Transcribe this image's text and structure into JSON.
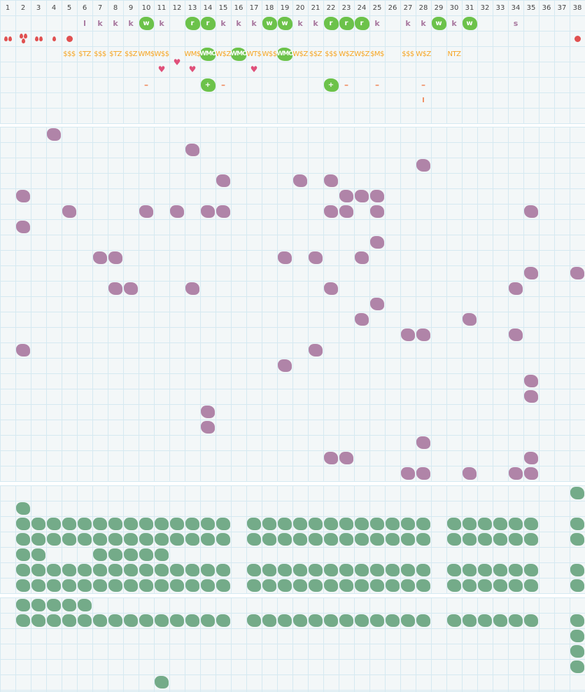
{
  "colors": {
    "grid_bg": "#f3f7f8",
    "grid_line": "#d5e9f1",
    "purple": "#b084a8",
    "sage": "#74ab89",
    "bright_green": "#6cc24a",
    "orange": "#f6a623",
    "red": "#e05050",
    "heart": "#e0507a"
  },
  "header": {
    "columns": [
      "1",
      "2",
      "3",
      "4",
      "5",
      "6",
      "7",
      "8",
      "9",
      "10",
      "11",
      "12",
      "13",
      "14",
      "15",
      "16",
      "17",
      "18",
      "19",
      "20",
      "21",
      "22",
      "23",
      "24",
      "25",
      "26",
      "27",
      "28",
      "29",
      "30",
      "31",
      "32",
      "33",
      "34",
      "35",
      "36",
      "37",
      "38"
    ]
  },
  "top": {
    "letters": [
      {
        "col": 6,
        "text": "l"
      },
      {
        "col": 7,
        "text": "k"
      },
      {
        "col": 8,
        "text": "k"
      },
      {
        "col": 9,
        "text": "k"
      },
      {
        "col": 10,
        "text": "w",
        "badge": true
      },
      {
        "col": 11,
        "text": "k"
      },
      {
        "col": 13,
        "text": "r",
        "badge": true
      },
      {
        "col": 14,
        "text": "r",
        "badge": true
      },
      {
        "col": 15,
        "text": "k"
      },
      {
        "col": 16,
        "text": "k"
      },
      {
        "col": 17,
        "text": "k"
      },
      {
        "col": 18,
        "text": "w",
        "badge": true
      },
      {
        "col": 19,
        "text": "w",
        "badge": true
      },
      {
        "col": 20,
        "text": "k"
      },
      {
        "col": 21,
        "text": "k"
      },
      {
        "col": 22,
        "text": "r",
        "badge": true
      },
      {
        "col": 23,
        "text": "r",
        "badge": true
      },
      {
        "col": 24,
        "text": "r",
        "badge": true
      },
      {
        "col": 25,
        "text": "k"
      },
      {
        "col": 27,
        "text": "k"
      },
      {
        "col": 28,
        "text": "k"
      },
      {
        "col": 29,
        "text": "w",
        "badge": true
      },
      {
        "col": 30,
        "text": "k"
      },
      {
        "col": 31,
        "text": "w",
        "badge": true
      },
      {
        "col": 34,
        "text": "s"
      }
    ],
    "markers": [
      {
        "col": 1,
        "icon": "drop-icon",
        "count": 2
      },
      {
        "col": 2,
        "icon": "drop-icon",
        "count": 3
      },
      {
        "col": 3,
        "icon": "drop-icon",
        "count": 2
      },
      {
        "col": 4,
        "icon": "drop-icon",
        "count": 1
      },
      {
        "col": 5,
        "icon": "circle-icon",
        "count": 1
      },
      {
        "col": 38,
        "icon": "circle-icon",
        "count": 1
      }
    ],
    "strings": [
      {
        "col": 5,
        "text": "$$$"
      },
      {
        "col": 6,
        "text": "$TZ"
      },
      {
        "col": 7,
        "text": "$$$"
      },
      {
        "col": 8,
        "text": "$TZ"
      },
      {
        "col": 9,
        "text": "$$Z"
      },
      {
        "col": 10,
        "text": "WM$"
      },
      {
        "col": 11,
        "text": "W$$"
      },
      {
        "col": 13,
        "text": "WM$"
      },
      {
        "col": 14,
        "text": "WMO",
        "badge": true
      },
      {
        "col": 15,
        "text": "W$Z"
      },
      {
        "col": 16,
        "text": "WMO",
        "badge": true
      },
      {
        "col": 17,
        "text": "WT$"
      },
      {
        "col": 18,
        "text": "W$$"
      },
      {
        "col": 19,
        "text": "WMO",
        "badge": true
      },
      {
        "col": 20,
        "text": "W$Z"
      },
      {
        "col": 21,
        "text": "$$Z"
      },
      {
        "col": 22,
        "text": "$$$"
      },
      {
        "col": 23,
        "text": "W$Z"
      },
      {
        "col": 24,
        "text": "W$Z"
      },
      {
        "col": 25,
        "text": "$M$"
      },
      {
        "col": 27,
        "text": "$$$"
      },
      {
        "col": 28,
        "text": "W$Z"
      },
      {
        "col": 30,
        "text": "NTZ"
      }
    ],
    "hearts": [
      {
        "col": 11
      },
      {
        "col": 12,
        "raised": true
      },
      {
        "col": 13
      },
      {
        "col": 17
      }
    ],
    "signs": [
      {
        "col": 10,
        "text": "–"
      },
      {
        "col": 14,
        "text": "+",
        "badge": true
      },
      {
        "col": 15,
        "text": "–"
      },
      {
        "col": 22,
        "text": "+",
        "badge": true
      },
      {
        "col": 23,
        "text": "–"
      },
      {
        "col": 25,
        "text": "–"
      },
      {
        "col": 28,
        "text": "–"
      }
    ],
    "bottom_marks": [
      {
        "col": 28,
        "text": "I"
      }
    ]
  },
  "purple_grid": {
    "rows": [
      [
        4
      ],
      [
        13
      ],
      [
        28
      ],
      [
        15,
        20,
        22
      ],
      [
        2,
        23,
        24,
        25
      ],
      [
        5,
        10,
        12,
        14,
        15,
        22,
        23,
        25,
        35
      ],
      [
        2
      ],
      [
        25
      ],
      [
        7,
        8,
        19,
        21,
        24
      ],
      [
        35,
        38
      ],
      [
        8,
        9,
        13,
        22,
        34
      ],
      [
        25
      ],
      [
        24,
        31
      ],
      [
        27,
        28,
        34
      ],
      [
        2,
        21
      ],
      [
        19
      ],
      [
        35
      ],
      [
        35
      ],
      [
        14
      ],
      [
        14
      ],
      [
        28
      ],
      [
        22,
        23,
        35
      ],
      [
        27,
        28,
        31,
        34,
        35
      ]
    ]
  },
  "green_grid_a": {
    "rows": [
      [
        38
      ],
      [
        2
      ],
      [
        2,
        3,
        4,
        5,
        6,
        7,
        8,
        9,
        10,
        11,
        12,
        13,
        14,
        15,
        17,
        18,
        19,
        20,
        21,
        22,
        23,
        24,
        25,
        26,
        27,
        28,
        30,
        31,
        32,
        33,
        34,
        35,
        38
      ],
      [
        2,
        3,
        4,
        5,
        6,
        7,
        8,
        9,
        10,
        11,
        12,
        13,
        14,
        15,
        17,
        18,
        19,
        20,
        21,
        22,
        23,
        24,
        25,
        26,
        27,
        28,
        30,
        31,
        32,
        33,
        34,
        35,
        38
      ],
      [
        2,
        3,
        7,
        8,
        9,
        10,
        11
      ],
      [
        2,
        3,
        4,
        5,
        6,
        7,
        8,
        9,
        10,
        11,
        12,
        13,
        14,
        15,
        17,
        18,
        19,
        20,
        21,
        22,
        23,
        24,
        25,
        26,
        27,
        28,
        30,
        31,
        32,
        33,
        34,
        35,
        38
      ],
      [
        2,
        3,
        4,
        5,
        6,
        7,
        8,
        9,
        10,
        11,
        12,
        13,
        14,
        15,
        17,
        18,
        19,
        20,
        21,
        22,
        23,
        24,
        25,
        26,
        27,
        28,
        30,
        31,
        32,
        33,
        34,
        35,
        38
      ]
    ]
  },
  "green_grid_b": {
    "rows": [
      [
        2,
        3,
        4,
        5,
        6
      ],
      [
        2,
        3,
        4,
        5,
        6,
        7,
        8,
        9,
        10,
        11,
        12,
        13,
        14,
        15,
        17,
        18,
        19,
        20,
        21,
        22,
        23,
        24,
        25,
        26,
        27,
        28,
        30,
        31,
        32,
        33,
        34,
        35,
        38
      ],
      [
        38
      ],
      [
        38
      ],
      [
        38
      ],
      [
        11
      ]
    ]
  }
}
